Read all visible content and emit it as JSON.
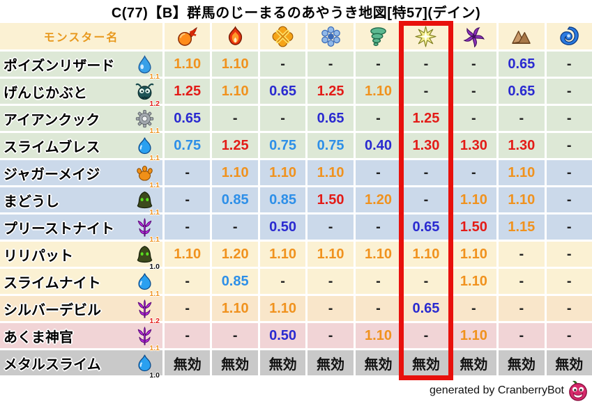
{
  "title": "C(77)【B】群馬のじーまるのあやうき地図[特57](デイン)",
  "table": {
    "name_header": "モンスター名",
    "columns": [
      {
        "icon": "fireball-icon"
      },
      {
        "icon": "flame-icon"
      },
      {
        "icon": "io-burst-icon"
      },
      {
        "icon": "snowflake-icon"
      },
      {
        "icon": "tornado-icon"
      },
      {
        "icon": "dein-star-icon"
      },
      {
        "icon": "dark-pinwheel-icon"
      },
      {
        "icon": "mountain-icon"
      },
      {
        "icon": "wave-icon"
      }
    ],
    "highlight_column_index": 5,
    "monsters": [
      {
        "name": "ポイズンリザード",
        "icon": "water-drop-icon",
        "weight": "1.1",
        "row_color": "green",
        "values": [
          "1.10",
          "1.10",
          "-",
          "-",
          "-",
          "-",
          "-",
          "0.65",
          "-"
        ]
      },
      {
        "name": "げんじかぶと",
        "icon": "beetle-icon",
        "weight": "1.2",
        "row_color": "green",
        "values": [
          "1.25",
          "1.10",
          "0.65",
          "1.25",
          "1.10",
          "-",
          "-",
          "0.65",
          "-"
        ]
      },
      {
        "name": "アイアンクック",
        "icon": "gear-icon",
        "weight": "1.1",
        "row_color": "green",
        "values": [
          "0.65",
          "-",
          "-",
          "0.65",
          "-",
          "1.25",
          "-",
          "-",
          "-"
        ]
      },
      {
        "name": "スライムブレス",
        "icon": "slime-icon",
        "weight": "1.1",
        "row_color": "green",
        "values": [
          "0.75",
          "1.25",
          "0.75",
          "0.75",
          "0.40",
          "1.30",
          "1.30",
          "1.30",
          "-"
        ]
      },
      {
        "name": "ジャガーメイジ",
        "icon": "paw-icon",
        "weight": "1.1",
        "row_color": "blue",
        "values": [
          "-",
          "1.10",
          "1.10",
          "1.10",
          "-",
          "-",
          "-",
          "1.10",
          "-"
        ]
      },
      {
        "name": "まどうし",
        "icon": "hood-icon",
        "weight": "1.1",
        "row_color": "blue",
        "values": [
          "-",
          "0.85",
          "0.85",
          "1.50",
          "1.20",
          "-",
          "1.10",
          "1.10",
          "-"
        ]
      },
      {
        "name": "プリーストナイト",
        "icon": "demon-icon",
        "weight": "1.1",
        "row_color": "blue",
        "values": [
          "-",
          "-",
          "0.50",
          "-",
          "-",
          "0.65",
          "1.50",
          "1.15",
          "-"
        ]
      },
      {
        "name": "リリパット",
        "icon": "hood-icon",
        "weight": "1.0",
        "row_color": "cream",
        "values": [
          "1.10",
          "1.20",
          "1.10",
          "1.10",
          "1.10",
          "1.10",
          "1.10",
          "-",
          "-"
        ]
      },
      {
        "name": "スライムナイト",
        "icon": "slime-icon",
        "weight": "1.1",
        "row_color": "cream",
        "values": [
          "-",
          "0.85",
          "-",
          "-",
          "-",
          "-",
          "1.10",
          "-",
          "-"
        ]
      },
      {
        "name": "シルバーデビル",
        "icon": "demon-icon",
        "weight": "1.2",
        "row_color": "peach",
        "values": [
          "-",
          "1.10",
          "1.10",
          "-",
          "-",
          "0.65",
          "-",
          "-",
          "-"
        ]
      },
      {
        "name": "あくま神官",
        "icon": "demon-icon",
        "weight": "1.1",
        "row_color": "pink",
        "values": [
          "-",
          "-",
          "0.50",
          "-",
          "1.10",
          "-",
          "1.10",
          "-",
          "-"
        ]
      },
      {
        "name": "メタルスライム",
        "icon": "slime-icon",
        "weight": "1.0",
        "row_color": "gray",
        "values": [
          "無効",
          "無効",
          "無効",
          "無効",
          "無効",
          "無効",
          "無効",
          "無効",
          "無効"
        ]
      }
    ]
  },
  "footer": {
    "credit": "generated by CranberryBot",
    "logo_icon": "cranberry-icon"
  },
  "colors": {
    "value_up": "#f0921e",
    "value_strong_up": "#e31b17",
    "value_down_light": "#2d8fe8",
    "value_down_dark": "#2a2ad0",
    "immune_text": "#111111",
    "highlight_box": "#e8100c",
    "header_bg": "#fbf1d3",
    "header_text": "#e8991e",
    "row_green": "#dde8d6",
    "row_blue": "#cbd9ea",
    "row_cream": "#fbf1d3",
    "row_peach": "#f9e6ca",
    "row_pink": "#f1d4d6",
    "row_gray": "#c9c9c9"
  }
}
